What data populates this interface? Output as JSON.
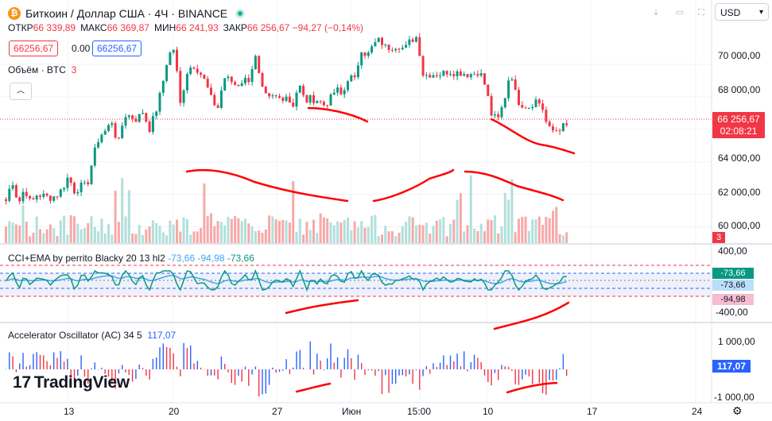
{
  "header": {
    "symbol_icon": "₿",
    "title": "Биткоин / Доллар США · 4Ч · BINANCE",
    "ohlc": [
      {
        "label": "ОТКР",
        "value": "66 339,89"
      },
      {
        "label": "МАКС",
        "value": "66 369,87"
      },
      {
        "label": "МИН",
        "value": "66 241,93"
      },
      {
        "label": "ЗАКР",
        "value": "66 256,67 −94,27 (−0,14%)"
      }
    ],
    "sell_price": "66256,67",
    "spread": "0.00",
    "buy_price": "66256,67",
    "volume_label": "Объём · BTC",
    "volume_value": "3",
    "collapse_icon": "chevron-up-icon"
  },
  "toolbar": {
    "currency": "USD",
    "currency_chevron": "▾"
  },
  "price_axis": {
    "ticks": [
      "70 000,00",
      "68 000,00",
      "66 000,00",
      "64 000,00",
      "62 000,00",
      "60 000,00"
    ],
    "last_price": "66 256,67",
    "countdown": "02:08:21",
    "volume_badge": "3"
  },
  "cci": {
    "legend_name": "CCI+EMA by perrito Blacky 20 13 hl2",
    "legend_v1": "-73,66",
    "legend_v2": "-94,98",
    "legend_v3": "-73,66",
    "axis_top": "400,00",
    "axis_bottom": "-400,00",
    "badge1": "-73,66",
    "badge2": "-73,66",
    "badge3": "-94,98"
  },
  "ac": {
    "legend_name": "Accelerator Oscillator (AC)",
    "legend_params": "34 5",
    "legend_value": "117,07",
    "axis_top": "1 000,00",
    "axis_bottom": "-1 000,00",
    "badge": "117,07"
  },
  "time_axis": {
    "labels": [
      "13",
      "20",
      "27",
      "Июн",
      "15:00",
      "10",
      "17",
      "24"
    ]
  },
  "logo": {
    "mark": "17",
    "text": "TradingView"
  },
  "colors": {
    "up": "#089981",
    "down": "#f23645",
    "vol_up": "#b2dfdb",
    "vol_down": "#f7a9a7",
    "cci": "#089981",
    "ema": "#42a5f5",
    "annotation": "#ff0000",
    "ac_up": "#2962ff",
    "ac_down": "#f23645"
  },
  "chart_data": {
    "type": "candlestick",
    "timeframe": "4H",
    "ylim": [
      59000,
      72000
    ],
    "price_path": [
      61600,
      62900,
      61400,
      62400,
      61400,
      62000,
      61900,
      61800,
      61900,
      62300,
      63100,
      62200,
      62500,
      62500,
      64300,
      65600,
      65900,
      66500,
      65000,
      66900,
      66800,
      66600,
      67100,
      66000,
      67000,
      68500,
      70500,
      71000,
      67500,
      69500,
      70000,
      69600,
      68900,
      67800,
      67300,
      69200,
      69000,
      68700,
      69000,
      69100,
      70500,
      68500,
      67800,
      68000,
      67900,
      68100,
      67400,
      68800,
      67700,
      67900,
      67800,
      67500,
      67800,
      68500,
      68000,
      69300,
      69000,
      71000,
      70500,
      71200,
      71500,
      71000,
      71100,
      71200,
      70900,
      71500,
      71700,
      69300,
      69400,
      69400,
      69400,
      69600,
      69500,
      69500,
      69400,
      69400,
      69600,
      68600,
      66800,
      66600,
      67800,
      69700,
      67800,
      67500,
      67400,
      67800,
      67500,
      66000,
      65900,
      66100,
      66256.67
    ],
    "annotation": "Hand-drawn red curves under price swing lows, volume, CCI and AC"
  }
}
